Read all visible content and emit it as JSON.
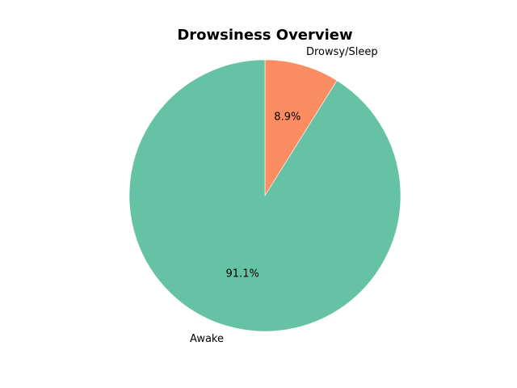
{
  "chart_data": {
    "type": "pie",
    "title": "Drowsiness Overview",
    "slices": [
      {
        "label": "Drowsy/Sleep",
        "value": 8.9,
        "pct_label": "8.9%",
        "color": "#fc8d62"
      },
      {
        "label": "Awake",
        "value": 91.1,
        "pct_label": "91.1%",
        "color": "#66c2a5"
      }
    ],
    "start_angle_deg": 90,
    "direction": "clockwise",
    "legend": "none"
  }
}
